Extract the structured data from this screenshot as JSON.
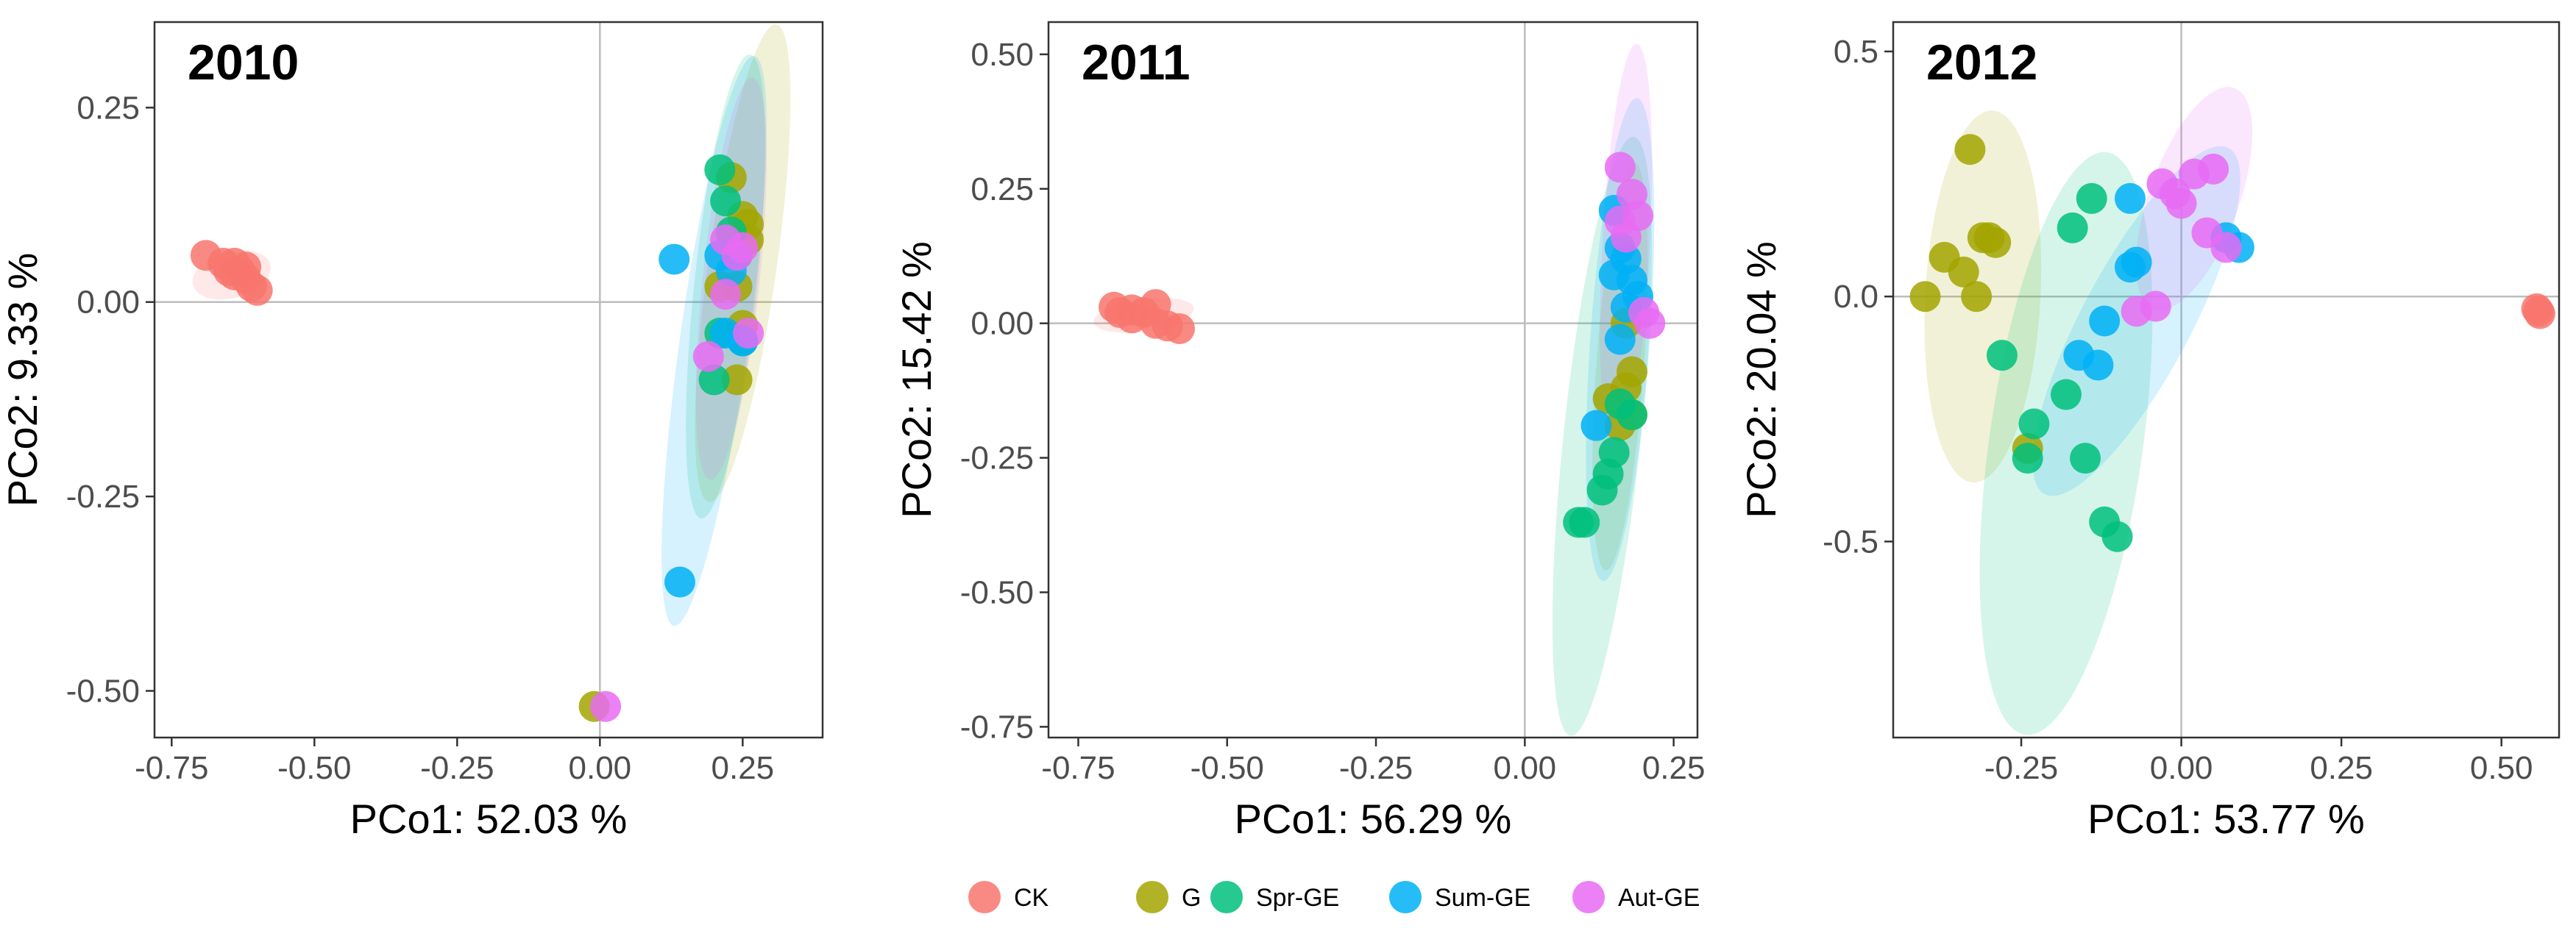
{
  "legend": [
    {
      "name": "CK",
      "color": "#F8766D"
    },
    {
      "name": "G",
      "color": "#A3A500"
    },
    {
      "name": "Spr-GE",
      "color": "#00BF7D"
    },
    {
      "name": "Sum-GE",
      "color": "#00B0F6"
    },
    {
      "name": "Aut-GE",
      "color": "#E76BF3"
    }
  ],
  "chart_data": [
    {
      "type": "scatter",
      "title": "2010",
      "xlabel": "PCo1: 52.03 %",
      "ylabel": "PCo2: 9.33 %",
      "xlim": [
        -0.78,
        0.39
      ],
      "ylim": [
        -0.56,
        0.36
      ],
      "xticks": [
        -0.75,
        -0.5,
        -0.25,
        0.0,
        0.25
      ],
      "xtick_labels": [
        "-0.75",
        "-0.50",
        "-0.25",
        "0.00",
        "0.25"
      ],
      "yticks": [
        -0.5,
        -0.25,
        0.0,
        0.25
      ],
      "ytick_labels": [
        "-0.50",
        "-0.25",
        "0.00",
        "0.25"
      ],
      "grid": false,
      "reference_lines": {
        "x": 0,
        "y": 0
      },
      "ellipses": [
        {
          "group": "CK",
          "cx": -0.645,
          "cy": 0.035,
          "rx": 0.07,
          "ry": 0.03,
          "angle": -15
        },
        {
          "group": "G",
          "cx": 0.25,
          "cy": 0.05,
          "rx": 0.06,
          "ry": 0.31,
          "angle": 8
        },
        {
          "group": "Spr-GE",
          "cx": 0.22,
          "cy": 0.02,
          "rx": 0.055,
          "ry": 0.3,
          "angle": 6
        },
        {
          "group": "Sum-GE",
          "cx": 0.2,
          "cy": -0.05,
          "rx": 0.06,
          "ry": 0.37,
          "angle": 8
        },
        {
          "group": "Aut-GE",
          "cx": 0.23,
          "cy": 0.03,
          "rx": 0.05,
          "ry": 0.26,
          "angle": 6
        }
      ],
      "series": [
        {
          "name": "CK",
          "points": [
            [
              -0.69,
              0.06
            ],
            [
              -0.66,
              0.05
            ],
            [
              -0.65,
              0.04
            ],
            [
              -0.64,
              0.05
            ],
            [
              -0.63,
              0.04
            ],
            [
              -0.62,
              0.03
            ],
            [
              -0.61,
              0.02
            ],
            [
              -0.6,
              0.015
            ],
            [
              -0.64,
              0.035
            ],
            [
              -0.62,
              0.045
            ]
          ]
        },
        {
          "name": "G",
          "points": [
            [
              0.23,
              0.16
            ],
            [
              0.25,
              0.11
            ],
            [
              0.26,
              0.08
            ],
            [
              0.24,
              0.02
            ],
            [
              0.25,
              -0.03
            ],
            [
              0.24,
              -0.1
            ],
            [
              -0.01,
              -0.52
            ],
            [
              0.21,
              0.02
            ],
            [
              0.26,
              0.1
            ]
          ]
        },
        {
          "name": "Spr-GE",
          "points": [
            [
              0.21,
              0.17
            ],
            [
              0.22,
              0.13
            ],
            [
              0.24,
              0.06
            ],
            [
              0.21,
              -0.04
            ],
            [
              0.25,
              -0.05
            ],
            [
              0.2,
              -0.1
            ],
            [
              0.23,
              0.09
            ]
          ]
        },
        {
          "name": "Sum-GE",
          "points": [
            [
              0.13,
              0.055
            ],
            [
              0.14,
              -0.36
            ],
            [
              0.23,
              0.04
            ],
            [
              0.22,
              -0.04
            ],
            [
              0.25,
              -0.05
            ],
            [
              0.21,
              0.06
            ]
          ]
        },
        {
          "name": "Aut-GE",
          "points": [
            [
              0.22,
              0.08
            ],
            [
              0.24,
              0.06
            ],
            [
              0.22,
              0.01
            ],
            [
              0.26,
              -0.04
            ],
            [
              0.19,
              -0.07
            ],
            [
              0.01,
              -0.52
            ],
            [
              0.25,
              0.07
            ]
          ]
        }
      ]
    },
    {
      "type": "scatter",
      "title": "2011",
      "xlabel": "PCo1: 56.29 %",
      "ylabel": "PCo2: 15.42 %",
      "xlim": [
        -0.8,
        0.29
      ],
      "ylim": [
        -0.77,
        0.56
      ],
      "xticks": [
        -0.75,
        -0.5,
        -0.25,
        0.0,
        0.25
      ],
      "xtick_labels": [
        "-0.75",
        "-0.50",
        "-0.25",
        "0.00",
        "0.25"
      ],
      "yticks": [
        -0.75,
        -0.5,
        -0.25,
        0.0,
        0.25,
        0.5
      ],
      "ytick_labels": [
        "-0.75",
        "-0.50",
        "-0.25",
        "0.00",
        "0.25",
        "0.50"
      ],
      "grid": false,
      "reference_lines": {
        "x": 0,
        "y": 0
      },
      "ellipses": [
        {
          "group": "CK",
          "cx": -0.64,
          "cy": 0.015,
          "rx": 0.085,
          "ry": 0.03,
          "angle": -8
        },
        {
          "group": "G",
          "cx": 0.16,
          "cy": -0.08,
          "rx": 0.04,
          "ry": 0.38,
          "angle": 4
        },
        {
          "group": "Spr-GE",
          "cx": 0.13,
          "cy": -0.21,
          "rx": 0.065,
          "ry": 0.56,
          "angle": 6
        },
        {
          "group": "Sum-GE",
          "cx": 0.16,
          "cy": -0.03,
          "rx": 0.05,
          "ry": 0.45,
          "angle": 4
        },
        {
          "group": "Aut-GE",
          "cx": 0.17,
          "cy": 0.14,
          "rx": 0.04,
          "ry": 0.38,
          "angle": 3
        }
      ],
      "series": [
        {
          "name": "CK",
          "points": [
            [
              -0.69,
              0.03
            ],
            [
              -0.68,
              0.02
            ],
            [
              -0.66,
              0.01
            ],
            [
              -0.64,
              0.02
            ],
            [
              -0.62,
              0.0
            ],
            [
              -0.62,
              0.035
            ],
            [
              -0.6,
              -0.005
            ],
            [
              -0.58,
              -0.01
            ],
            [
              -0.66,
              0.025
            ]
          ]
        },
        {
          "name": "G",
          "points": [
            [
              0.17,
              0.0
            ],
            [
              0.18,
              -0.09
            ],
            [
              0.17,
              -0.12
            ],
            [
              0.14,
              -0.14
            ],
            [
              0.16,
              -0.19
            ],
            [
              0.18,
              -0.17
            ]
          ]
        },
        {
          "name": "Spr-GE",
          "points": [
            [
              0.09,
              -0.37
            ],
            [
              0.1,
              -0.37
            ],
            [
              0.13,
              -0.31
            ],
            [
              0.14,
              -0.28
            ],
            [
              0.15,
              -0.24
            ],
            [
              0.18,
              -0.17
            ],
            [
              0.16,
              -0.15
            ]
          ]
        },
        {
          "name": "Sum-GE",
          "points": [
            [
              0.15,
              0.21
            ],
            [
              0.16,
              0.14
            ],
            [
              0.17,
              0.12
            ],
            [
              0.15,
              0.09
            ],
            [
              0.18,
              0.08
            ],
            [
              0.19,
              0.05
            ],
            [
              0.16,
              -0.03
            ],
            [
              0.12,
              -0.19
            ],
            [
              0.17,
              0.03
            ]
          ]
        },
        {
          "name": "Aut-GE",
          "points": [
            [
              0.16,
              0.29
            ],
            [
              0.18,
              0.24
            ],
            [
              0.19,
              0.2
            ],
            [
              0.16,
              0.19
            ],
            [
              0.2,
              0.02
            ],
            [
              0.21,
              0.0
            ],
            [
              0.17,
              0.16
            ]
          ]
        }
      ]
    },
    {
      "type": "scatter",
      "title": "2012",
      "xlabel": "PCo1: 53.77 %",
      "ylabel": "PCo2: 20.04 %",
      "xlim": [
        -0.45,
        0.59
      ],
      "ylim": [
        -0.9,
        0.56
      ],
      "xticks": [
        -0.25,
        0.0,
        0.25,
        0.5
      ],
      "xtick_labels": [
        "-0.25",
        "0.00",
        "0.25",
        "0.50"
      ],
      "yticks": [
        -0.5,
        0.0,
        0.5
      ],
      "ytick_labels": [
        "-0.5",
        "0.0",
        "0.5"
      ],
      "grid": false,
      "reference_lines": {
        "x": 0,
        "y": 0
      },
      "ellipses": [
        {
          "group": "G",
          "cx": -0.31,
          "cy": 0.0,
          "rx": 0.09,
          "ry": 0.38,
          "angle": 3
        },
        {
          "group": "Spr-GE",
          "cx": -0.18,
          "cy": -0.3,
          "rx": 0.12,
          "ry": 0.6,
          "angle": 8
        },
        {
          "group": "Sum-GE",
          "cx": -0.07,
          "cy": -0.05,
          "rx": 0.085,
          "ry": 0.4,
          "angle": 28
        },
        {
          "group": "Aut-GE",
          "cx": 0.02,
          "cy": 0.2,
          "rx": 0.07,
          "ry": 0.24,
          "angle": 20
        }
      ],
      "series": [
        {
          "name": "CK",
          "points": [
            [
              0.555,
              -0.025
            ],
            [
              0.56,
              -0.035
            ],
            [
              0.558,
              -0.03
            ]
          ]
        },
        {
          "name": "G",
          "points": [
            [
              -0.4,
              0.0
            ],
            [
              -0.37,
              0.08
            ],
            [
              -0.34,
              0.05
            ],
            [
              -0.33,
              0.3
            ],
            [
              -0.32,
              0.0
            ],
            [
              -0.31,
              0.12
            ],
            [
              -0.3,
              0.12
            ],
            [
              -0.29,
              0.11
            ],
            [
              -0.24,
              -0.31
            ]
          ]
        },
        {
          "name": "Spr-GE",
          "points": [
            [
              -0.28,
              -0.12
            ],
            [
              -0.24,
              -0.33
            ],
            [
              -0.23,
              -0.26
            ],
            [
              -0.18,
              -0.2
            ],
            [
              -0.17,
              0.14
            ],
            [
              -0.14,
              0.2
            ],
            [
              -0.15,
              -0.33
            ],
            [
              -0.12,
              -0.46
            ],
            [
              -0.1,
              -0.49
            ]
          ]
        },
        {
          "name": "Sum-GE",
          "points": [
            [
              -0.16,
              -0.12
            ],
            [
              -0.13,
              -0.14
            ],
            [
              -0.12,
              -0.05
            ],
            [
              -0.08,
              0.06
            ],
            [
              -0.08,
              0.2
            ],
            [
              -0.07,
              0.07
            ],
            [
              0.07,
              0.12
            ],
            [
              0.09,
              0.1
            ]
          ]
        },
        {
          "name": "Aut-GE",
          "points": [
            [
              -0.07,
              -0.03
            ],
            [
              -0.04,
              -0.02
            ],
            [
              -0.03,
              0.23
            ],
            [
              -0.01,
              0.21
            ],
            [
              0.0,
              0.19
            ],
            [
              0.02,
              0.25
            ],
            [
              0.05,
              0.26
            ],
            [
              0.04,
              0.13
            ],
            [
              0.07,
              0.1
            ]
          ]
        }
      ]
    }
  ]
}
